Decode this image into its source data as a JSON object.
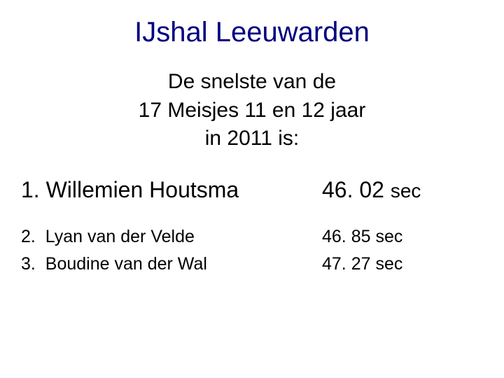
{
  "title": "IJshal  Leeuwarden",
  "subtitle_line1": "De snelste van de",
  "subtitle_line2": "17 Meisjes 11 en 12 jaar",
  "subtitle_line3": "in 2011 is:",
  "results": [
    {
      "rank": "1.",
      "name": "Willemien Houtsma",
      "time": "46. 02",
      "unit": "sec"
    },
    {
      "rank": "2.",
      "name": "Lyan van der Velde",
      "time": "46. 85",
      "unit": "sec"
    },
    {
      "rank": "3.",
      "name": "Boudine van der Wal",
      "time": "47. 27",
      "unit": "sec"
    }
  ],
  "colors": {
    "title": "#000080",
    "body": "#000000",
    "background": "#ffffff"
  },
  "fonts": {
    "family": "Verdana",
    "title_size_pt": 40,
    "subtitle_size_pt": 30,
    "first_row_size_pt": 32,
    "other_row_size_pt": 25
  }
}
